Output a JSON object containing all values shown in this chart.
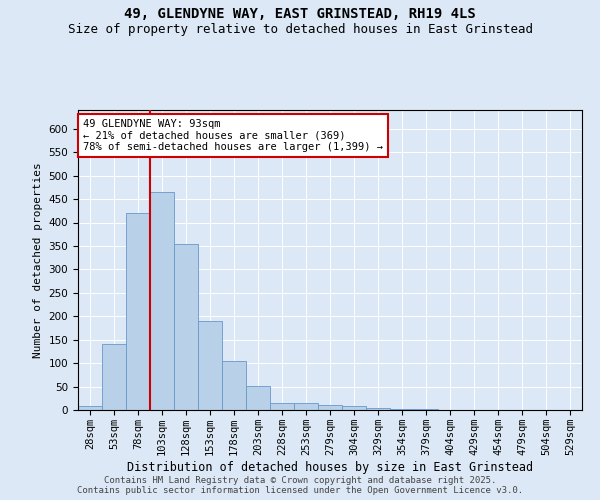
{
  "title1": "49, GLENDYNE WAY, EAST GRINSTEAD, RH19 4LS",
  "title2": "Size of property relative to detached houses in East Grinstead",
  "xlabel": "Distribution of detached houses by size in East Grinstead",
  "ylabel": "Number of detached properties",
  "categories": [
    "28sqm",
    "53sqm",
    "78sqm",
    "103sqm",
    "128sqm",
    "153sqm",
    "178sqm",
    "203sqm",
    "228sqm",
    "253sqm",
    "279sqm",
    "304sqm",
    "329sqm",
    "354sqm",
    "379sqm",
    "404sqm",
    "429sqm",
    "454sqm",
    "479sqm",
    "504sqm",
    "529sqm"
  ],
  "values": [
    8,
    140,
    420,
    465,
    355,
    190,
    105,
    52,
    14,
    14,
    11,
    9,
    5,
    3,
    2,
    1,
    1,
    1,
    1,
    0,
    0
  ],
  "bar_color": "#b8d0e8",
  "bar_edge_color": "#6699cc",
  "vline_color": "#cc0000",
  "annotation_text": "49 GLENDYNE WAY: 93sqm\n← 21% of detached houses are smaller (369)\n78% of semi-detached houses are larger (1,399) →",
  "annotation_box_color": "#ffffff",
  "annotation_box_edge": "#cc0000",
  "ylim": [
    0,
    640
  ],
  "yticks": [
    0,
    50,
    100,
    150,
    200,
    250,
    300,
    350,
    400,
    450,
    500,
    550,
    600
  ],
  "footer1": "Contains HM Land Registry data © Crown copyright and database right 2025.",
  "footer2": "Contains public sector information licensed under the Open Government Licence v3.0.",
  "background_color": "#dce8f5",
  "plot_bg_color": "#dce8f5",
  "title1_fontsize": 10,
  "title2_fontsize": 9,
  "xlabel_fontsize": 8.5,
  "ylabel_fontsize": 8,
  "tick_fontsize": 7.5,
  "annot_fontsize": 7.5,
  "footer_fontsize": 6.5
}
